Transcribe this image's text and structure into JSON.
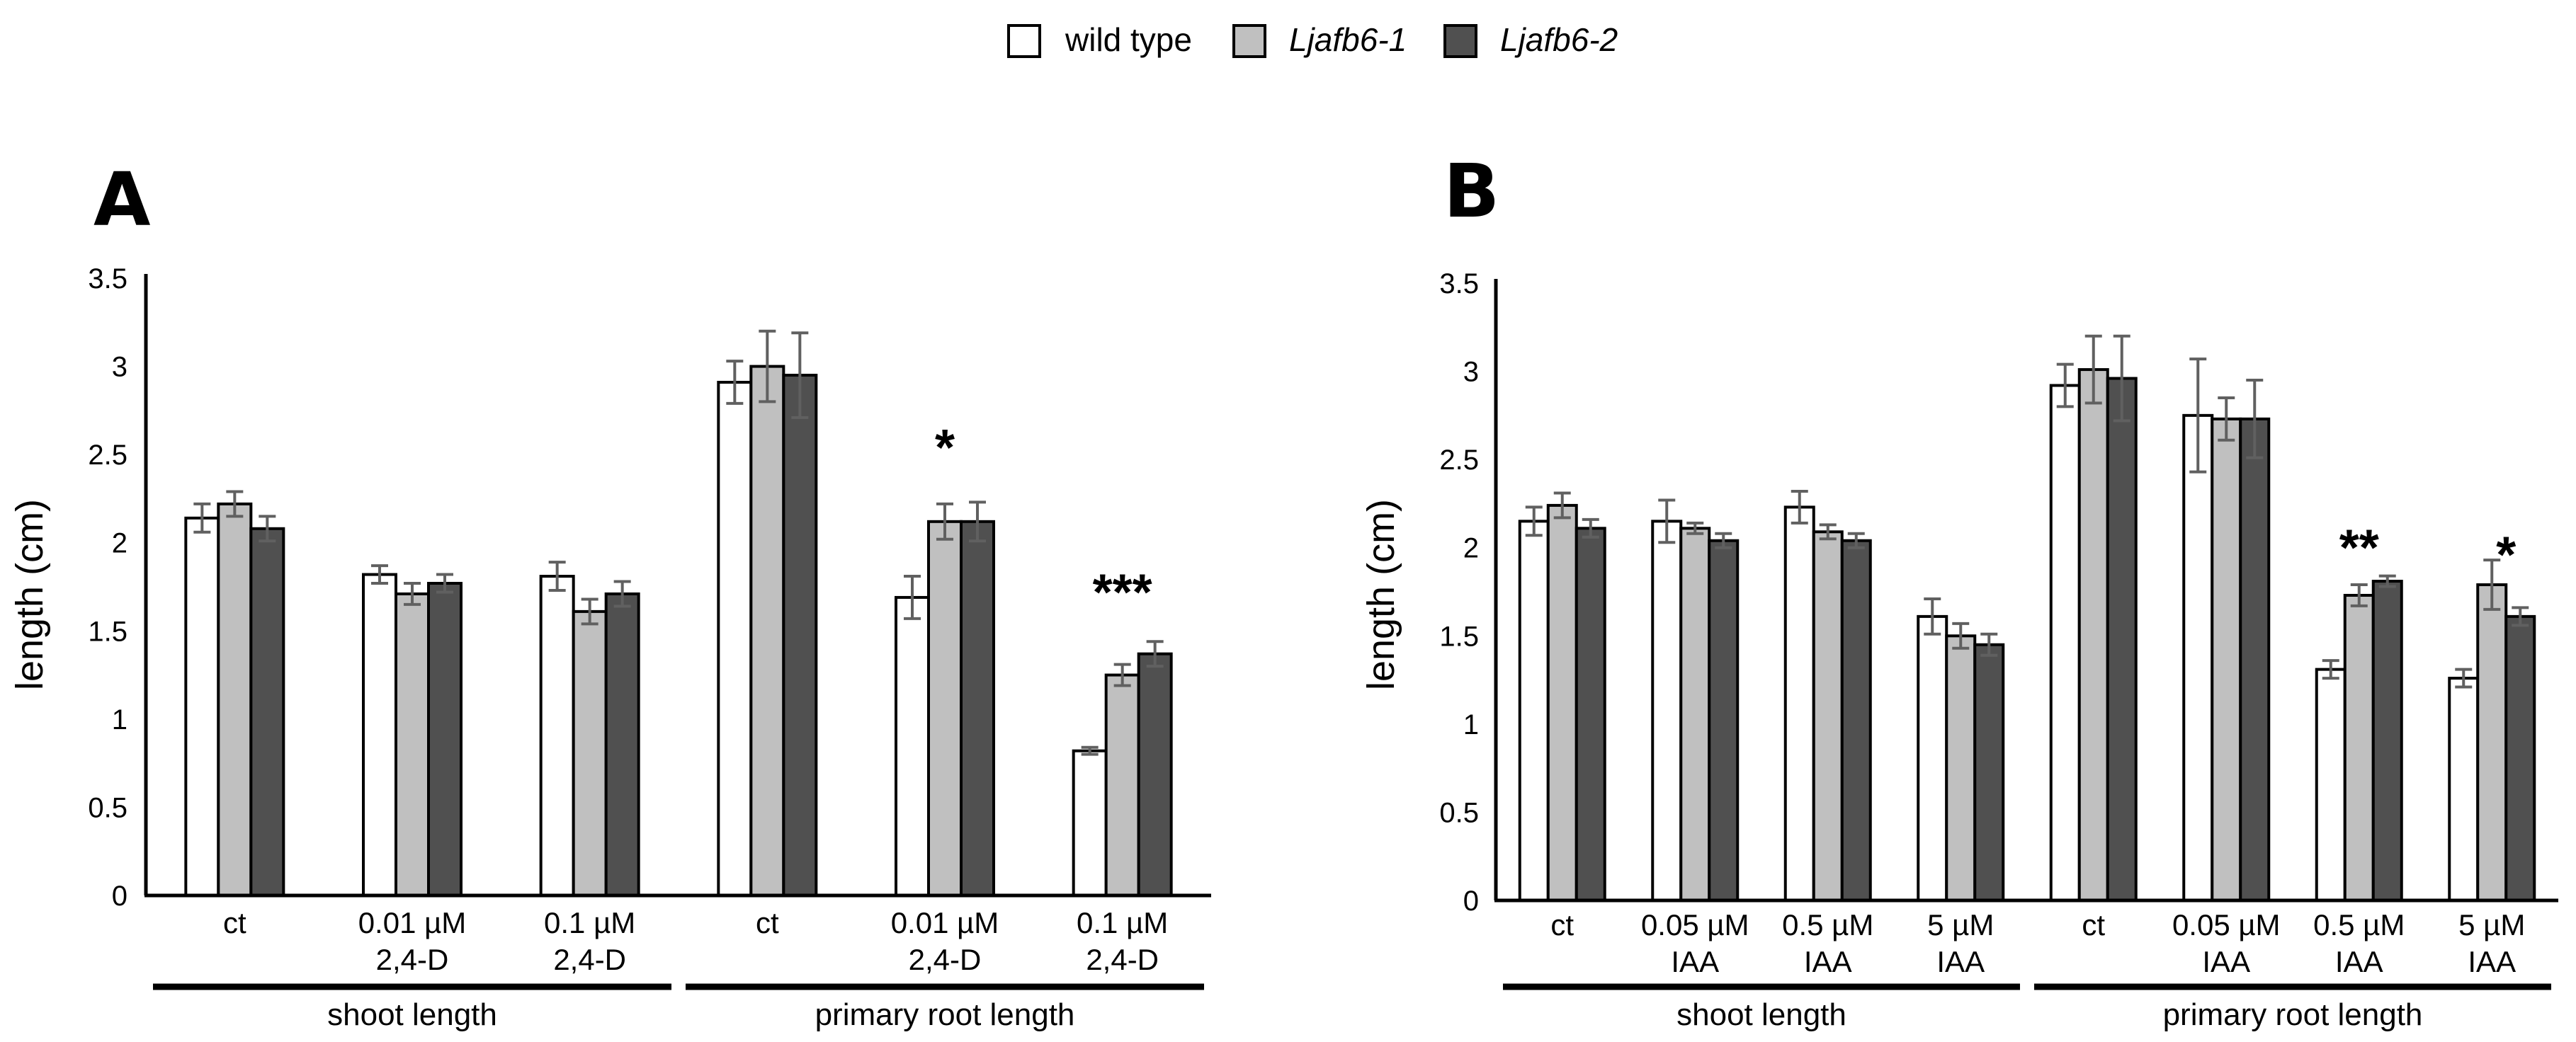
{
  "legend": [
    {
      "label": "wild type",
      "color": "#ffffff",
      "italic": false
    },
    {
      "label": "Ljafb6-1",
      "color": "#c0c0c0",
      "italic": true
    },
    {
      "label": "Ljafb6-2",
      "color": "#505050",
      "italic": true
    }
  ],
  "chart_data": [
    {
      "panel": "A",
      "type": "bar",
      "title": "",
      "ylabel": "length (cm)",
      "xlabel": "",
      "ylim": [
        0,
        3.5
      ],
      "yticks": [
        "0",
        "0.5",
        "1",
        "1.5",
        "2",
        "2.5",
        "3",
        "3.5"
      ],
      "categories": [
        [
          "ct"
        ],
        [
          "0.01 µM",
          "2,4-D"
        ],
        [
          "0.1 µM",
          "2,4-D"
        ],
        [
          "ct"
        ],
        [
          "0.01 µM",
          "2,4-D"
        ],
        [
          "0.1 µM",
          "2,4-D"
        ]
      ],
      "groups": [
        {
          "label": "shoot length",
          "from": 0,
          "to": 2
        },
        {
          "label": "primary root length",
          "from": 3,
          "to": 5
        }
      ],
      "series": [
        {
          "name": "wild type",
          "values": [
            2.14,
            1.82,
            1.81,
            2.91,
            1.69,
            0.82
          ],
          "errors": [
            0.08,
            0.05,
            0.08,
            0.12,
            0.12,
            0.02
          ]
        },
        {
          "name": "Ljafb6-1",
          "values": [
            2.22,
            1.71,
            1.61,
            3.0,
            2.12,
            1.25
          ],
          "errors": [
            0.07,
            0.06,
            0.07,
            0.2,
            0.1,
            0.06
          ]
        },
        {
          "name": "Ljafb6-2",
          "values": [
            2.08,
            1.77,
            1.71,
            2.95,
            2.12,
            1.37
          ],
          "errors": [
            0.07,
            0.05,
            0.07,
            0.24,
            0.11,
            0.07
          ]
        }
      ],
      "annotations": [
        {
          "category": 4,
          "series": 1.5,
          "text": "*",
          "y": 2.44
        },
        {
          "category": 5,
          "series": 1.5,
          "text": "***",
          "y": 1.62
        }
      ]
    },
    {
      "panel": "B",
      "type": "bar",
      "title": "",
      "ylabel": "length (cm)",
      "xlabel": "",
      "ylim": [
        0,
        3.5
      ],
      "yticks": [
        "0",
        "0.5",
        "1",
        "1.5",
        "2",
        "2.5",
        "3",
        "3.5"
      ],
      "categories": [
        [
          "ct"
        ],
        [
          "0.05 µM",
          "IAA"
        ],
        [
          "0.5 µM",
          "IAA"
        ],
        [
          "5 µM",
          "IAA"
        ],
        [
          "ct"
        ],
        [
          "0.05 µM",
          "IAA"
        ],
        [
          "0.5 µM",
          "IAA"
        ],
        [
          "5 µM",
          "IAA"
        ]
      ],
      "groups": [
        {
          "label": "shoot length",
          "from": 0,
          "to": 3
        },
        {
          "label": "primary root length",
          "from": 4,
          "to": 7
        }
      ],
      "series": [
        {
          "name": "wild type",
          "values": [
            2.15,
            2.15,
            2.23,
            1.61,
            2.92,
            2.75,
            1.31,
            1.26
          ],
          "errors": [
            0.08,
            0.12,
            0.09,
            0.1,
            0.12,
            0.32,
            0.05,
            0.05
          ]
        },
        {
          "name": "Ljafb6-1",
          "values": [
            2.24,
            2.11,
            2.09,
            1.5,
            3.01,
            2.73,
            1.73,
            1.79
          ],
          "errors": [
            0.07,
            0.03,
            0.04,
            0.07,
            0.19,
            0.12,
            0.06,
            0.14
          ]
        },
        {
          "name": "Ljafb6-2",
          "values": [
            2.11,
            2.04,
            2.04,
            1.45,
            2.96,
            2.73,
            1.81,
            1.61
          ],
          "errors": [
            0.05,
            0.04,
            0.04,
            0.06,
            0.24,
            0.22,
            0.03,
            0.05
          ]
        }
      ],
      "annotations": [
        {
          "category": 6,
          "series": 1.5,
          "text": "**",
          "y": 1.9
        },
        {
          "category": 7,
          "series": 2.0,
          "text": "*",
          "y": 1.86
        }
      ]
    }
  ]
}
